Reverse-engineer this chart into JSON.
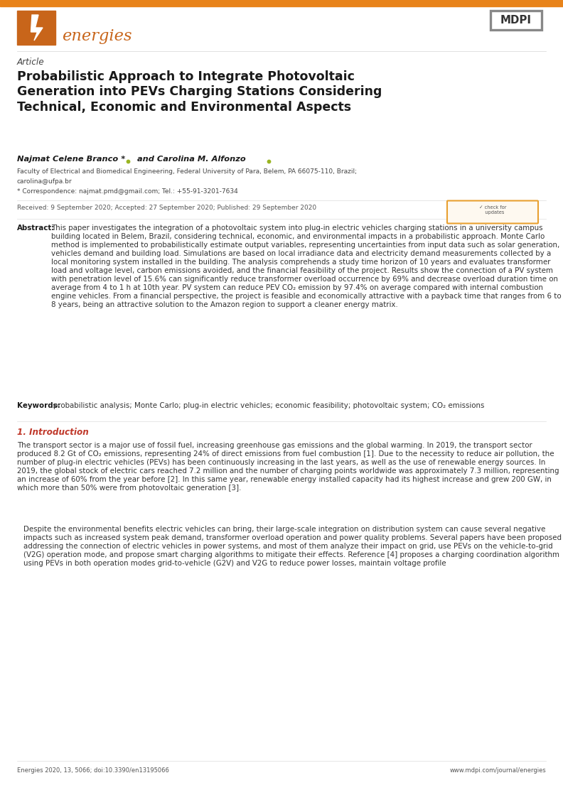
{
  "bg_color": "#ffffff",
  "energies_orange": "#c8651a",
  "journal_name": "energies",
  "journal_label": "Article",
  "title": "Probabilistic Approach to Integrate Photovoltaic\nGeneration into PEVs Charging Stations Considering\nTechnical, Economic and Environmental Aspects",
  "authors": "Najmat Celene Branco *",
  "authors2": " and Carolina M. Alfonzo",
  "affiliation1": "Faculty of Electrical and Biomedical Engineering, Federal University of Para, Belem, PA 66075-110, Brazil;",
  "affiliation2": "carolina@ufpa.br",
  "correspondence": "* Correspondence: najmat.pmd@gmail.com; Tel.: +55-91-3201-7634",
  "received": "Received: 9 September 2020; Accepted: 27 September 2020; Published: 29 September 2020",
  "abstract_title": "Abstract:",
  "abstract_text": "This paper investigates the integration of a photovoltaic system into plug-in electric vehicles charging stations in a university campus building located in Belem, Brazil, considering technical, economic, and environmental impacts in a probabilistic approach. Monte Carlo method is implemented to probabilistically estimate output variables, representing uncertainties from input data such as solar generation, vehicles demand and building load. Simulations are based on local irradiance data and electricity demand measurements collected by a local monitoring system installed in the building. The analysis comprehends a study time horizon of 10 years and evaluates transformer load and voltage level, carbon emissions avoided, and the financial feasibility of the project. Results show the connection of a PV system with penetration level of 15.6% can significantly reduce transformer overload occurrence by 69% and decrease overload duration time on average from 4 to 1 h at 10th year. PV system can reduce PEV CO₂ emission by 97.4% on average compared with internal combustion engine vehicles. From a financial perspective, the project is feasible and economically attractive with a payback time that ranges from 6 to 8 years, being an attractive solution to the Amazon region to support a cleaner energy matrix.",
  "keywords_title": "Keywords:",
  "keywords_text": "probabilistic analysis; Monte Carlo; plug-in electric vehicles; economic feasibility; photovoltaic system; CO₂ emissions",
  "section1_title": "1. Introduction",
  "intro_p1": "The transport sector is a major use of fossil fuel, increasing greenhouse gas emissions and the global warming. In 2019, the transport sector produced 8.2 Gt of CO₂ emissions, representing 24% of direct emissions from fuel combustion [1]. Due to the necessity to reduce air pollution, the number of plug-in electric vehicles (PEVs) has been continuously increasing in the last years, as well as the use of renewable energy sources. In 2019, the global stock of electric cars reached 7.2 million and the number of charging points worldwide was approximately 7.3 million, representing an increase of 60% from the year before [2]. In this same year, renewable energy installed capacity had its highest increase and grew 200 GW, in which more than 50% were from photovoltaic generation [3].",
  "intro_p2": "Despite the environmental benefits electric vehicles can bring, their large-scale integration on distribution system can cause several negative impacts such as increased system peak demand, transformer overload operation and power quality problems. Several papers have been proposed addressing the connection of electric vehicles in power systems, and most of them analyze their impact on grid, use PEVs on the vehicle-to-grid (V2G) operation mode, and propose smart charging algorithms to mitigate their effects. Reference [4] proposes a charging coordination algorithm using PEVs in both operation modes grid-to-vehicle (G2V) and V2G to reduce power losses, maintain voltage profile",
  "footer_left": "Energies 2020, 13, 5066; doi:10.3390/en13195066",
  "footer_right": "www.mdpi.com/journal/energies",
  "line_color": "#dddddd",
  "top_bar_color": "#e8831a",
  "text_dark": "#1a1a1a",
  "text_mid": "#333333",
  "text_light": "#555555",
  "red_section": "#c0392b",
  "mdpi_border": "#888888"
}
